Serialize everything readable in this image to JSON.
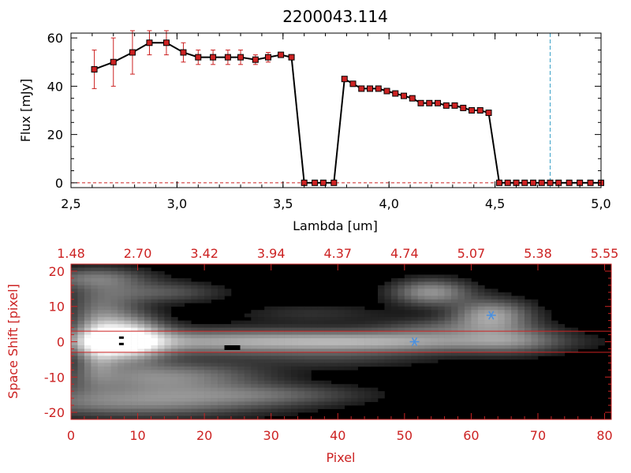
{
  "chart_data": [
    {
      "type": "line",
      "title": "2200043.114",
      "xlabel": "Lambda [um]",
      "ylabel": "Flux [mJy]",
      "xlim": [
        2.5,
        5.0
      ],
      "ylim": [
        -2,
        62
      ],
      "xticks": [
        "2.5",
        "3.0",
        "3.5",
        "4.0",
        "4.5",
        "5.0"
      ],
      "yticks": [
        "0",
        "20",
        "40",
        "60"
      ],
      "marker_color": "#cc2222",
      "line_color": "#000000",
      "vline_x": 4.76,
      "vline_color": "#3aa0c8",
      "hline_y": 0,
      "hline_color": "#cc2222",
      "series": [
        {
          "x": [
            2.61,
            2.7,
            2.79,
            2.87,
            2.95,
            3.03,
            3.1,
            3.17,
            3.24,
            3.3,
            3.37,
            3.43,
            3.49,
            3.54,
            3.6,
            3.65,
            3.69,
            3.74,
            3.79,
            3.83,
            3.87,
            3.91,
            3.95,
            3.99,
            4.03,
            4.07,
            4.11,
            4.15,
            4.19,
            4.23,
            4.27,
            4.31,
            4.35,
            4.39,
            4.43,
            4.47,
            4.52,
            4.56,
            4.6,
            4.64,
            4.68,
            4.72,
            4.76,
            4.8,
            4.85,
            4.9,
            4.95,
            5.0
          ],
          "y": [
            47,
            50,
            54,
            58,
            58,
            54,
            52,
            52,
            52,
            52,
            51,
            52,
            53,
            52,
            0,
            0,
            0,
            0,
            43,
            41,
            39,
            39,
            39,
            38,
            37,
            36,
            35,
            33,
            33,
            33,
            32,
            32,
            31,
            30,
            30,
            29,
            0,
            0,
            0,
            0,
            0,
            0,
            0,
            0,
            0,
            0,
            0,
            0
          ],
          "yerr": [
            8,
            10,
            9,
            5,
            5,
            4,
            3,
            3,
            3,
            3,
            2,
            2,
            1,
            1,
            0,
            0,
            0,
            0,
            1,
            1,
            1,
            1,
            1,
            1,
            1,
            1,
            1,
            1,
            1,
            1,
            1,
            1,
            1,
            1,
            1,
            1,
            0,
            0,
            0,
            0,
            0,
            0,
            0,
            0,
            0,
            0,
            0,
            0
          ]
        }
      ]
    },
    {
      "type": "heatmap",
      "xlabel": "Pixel",
      "ylabel": "Space Shift [pixel]",
      "xlim": [
        0,
        81
      ],
      "ylim": [
        -22,
        22
      ],
      "xticks": [
        "0",
        "10",
        "20",
        "30",
        "40",
        "50",
        "60",
        "70",
        "80"
      ],
      "yticks": [
        "-20",
        "-10",
        "0",
        "10",
        "20"
      ],
      "top_ticks": [
        "1.48",
        "2.70",
        "3.42",
        "3.94",
        "4.37",
        "4.74",
        "5.07",
        "5.38",
        "5.55"
      ],
      "axis_color": "#cc2222",
      "slit_lines_y": [
        3,
        -3
      ],
      "sources": [
        {
          "x": 51.5,
          "y": 0
        },
        {
          "x": 63,
          "y": 7.5
        }
      ],
      "source_color": "#4a90e0",
      "background_color": "#000000"
    }
  ]
}
